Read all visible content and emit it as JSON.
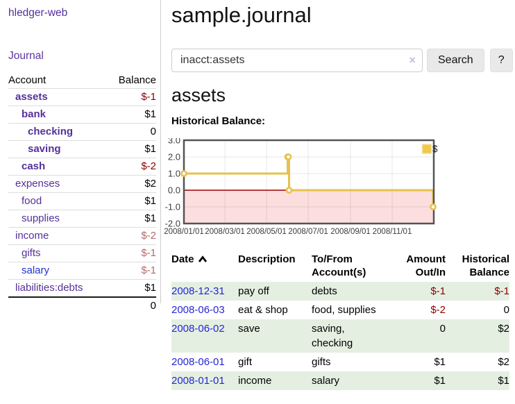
{
  "app": {
    "title": "hledger-web",
    "nav_journal": "Journal"
  },
  "sidebar": {
    "accounts_header": {
      "account": "Account",
      "balance": "Balance"
    },
    "accounts": [
      {
        "name": "assets",
        "balance": "$-1",
        "depth": 1,
        "bold": true,
        "neg": "strong",
        "link": "purple"
      },
      {
        "name": "bank",
        "balance": "$1",
        "depth": 2,
        "bold": true,
        "neg": "none",
        "link": "purple"
      },
      {
        "name": "checking",
        "balance": "0",
        "depth": 3,
        "bold": true,
        "neg": "none",
        "link": "purple"
      },
      {
        "name": "saving",
        "balance": "$1",
        "depth": 3,
        "bold": true,
        "neg": "none",
        "link": "purple"
      },
      {
        "name": "cash",
        "balance": "$-2",
        "depth": 2,
        "bold": true,
        "neg": "strong",
        "link": "purple"
      },
      {
        "name": "expenses",
        "balance": "$2",
        "depth": 1,
        "bold": false,
        "neg": "none",
        "link": "purple"
      },
      {
        "name": "food",
        "balance": "$1",
        "depth": 2,
        "bold": false,
        "neg": "none",
        "link": "purple"
      },
      {
        "name": "supplies",
        "balance": "$1",
        "depth": 2,
        "bold": false,
        "neg": "none",
        "link": "purple"
      },
      {
        "name": "income",
        "balance": "$-2",
        "depth": 1,
        "bold": false,
        "neg": "soft",
        "link": "purple"
      },
      {
        "name": "gifts",
        "balance": "$-1",
        "depth": 2,
        "bold": false,
        "neg": "soft",
        "link": "purple"
      },
      {
        "name": "salary",
        "balance": "$-1",
        "depth": 2,
        "bold": false,
        "neg": "soft",
        "link": "blue"
      },
      {
        "name": "liabilities:debts",
        "balance": "$1",
        "depth": 1,
        "bold": false,
        "neg": "none",
        "link": "purple"
      }
    ],
    "total": "0"
  },
  "main": {
    "title": "sample.journal",
    "search": {
      "value": "inacct:assets",
      "clear_icon": "×",
      "button_label": "Search",
      "help_label": "?"
    },
    "account_heading": "assets",
    "chart_label": "Historical Balance:"
  },
  "chart_data": {
    "type": "line",
    "step": true,
    "title": "Historical Balance",
    "series": [
      {
        "name": "$",
        "color": "#e7c14b",
        "points": [
          [
            "2008-01-01",
            1
          ],
          [
            "2008-06-01",
            2
          ],
          [
            "2008-06-02",
            2
          ],
          [
            "2008-06-03",
            0
          ],
          [
            "2008-12-31",
            -1
          ]
        ]
      }
    ],
    "x_domain": [
      "2008-01-01",
      "2009-01-01"
    ],
    "x_ticks": [
      {
        "date": "2008-01-01",
        "label": "2008/01/01"
      },
      {
        "date": "2008-03-01",
        "label": "2008/03/01"
      },
      {
        "date": "2008-05-01",
        "label": "2008/05/01"
      },
      {
        "date": "2008-07-01",
        "label": "2008/07/01"
      },
      {
        "date": "2008-09-01",
        "label": "2008/09/01"
      },
      {
        "date": "2008-11-01",
        "label": "2008/11/01"
      }
    ],
    "ylim": [
      -2,
      3
    ],
    "y_ticks": [
      {
        "value": 3,
        "label": "3.0"
      },
      {
        "value": 2,
        "label": "2.0"
      },
      {
        "value": 1,
        "label": "1.0"
      },
      {
        "value": 0,
        "label": "0.0"
      },
      {
        "value": -1,
        "label": "-1.0"
      },
      {
        "value": -2,
        "label": "-2.0"
      }
    ],
    "grid": true,
    "legend": {
      "label": "$",
      "swatch_color": "#eec94d",
      "position": "top-right"
    },
    "zero_line_color": "#a00000",
    "negative_region_color": "#fcdede",
    "border_color": "#545454"
  },
  "register_table": {
    "headers": [
      "Date",
      "Description",
      "To/From Account(s)",
      "Amount Out/In",
      "Historical Balance"
    ],
    "rows": [
      {
        "date": "2008-12-31",
        "description": "pay off",
        "accounts": "debts",
        "amount": "$-1",
        "amount_neg": true,
        "balance": "$-1",
        "balance_neg": true,
        "stripe": true
      },
      {
        "date": "2008-06-03",
        "description": "eat & shop",
        "accounts": "food, supplies",
        "amount": "$-2",
        "amount_neg": true,
        "balance": "0",
        "balance_neg": false,
        "stripe": false
      },
      {
        "date": "2008-06-02",
        "description": "save",
        "accounts": "saving, checking",
        "amount": "0",
        "amount_neg": false,
        "balance": "$2",
        "balance_neg": false,
        "stripe": true
      },
      {
        "date": "2008-06-01",
        "description": "gift",
        "accounts": "gifts",
        "amount": "$1",
        "amount_neg": false,
        "balance": "$2",
        "balance_neg": false,
        "stripe": false
      },
      {
        "date": "2008-01-01",
        "description": "income",
        "accounts": "salary",
        "amount": "$1",
        "amount_neg": false,
        "balance": "$1",
        "balance_neg": false,
        "stripe": true
      }
    ]
  }
}
